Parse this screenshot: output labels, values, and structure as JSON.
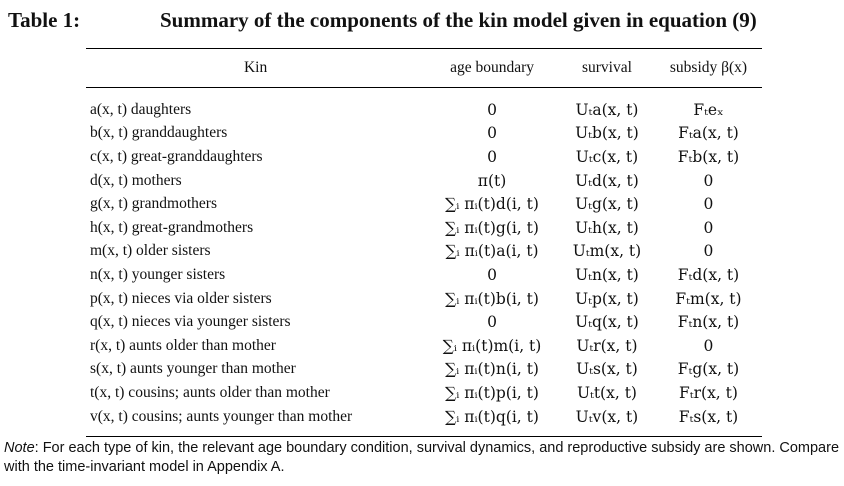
{
  "caption": {
    "label": "Table 1:",
    "title": "Summary of the components of the kin model given in equation (9)"
  },
  "headers": {
    "kin": "Kin",
    "age_boundary": "age boundary",
    "survival": "survival",
    "subsidy": "subsidy β(x)"
  },
  "rows": [
    {
      "kin": "a(x, t) daughters",
      "age_boundary": "0",
      "survival": "Uₜa(x, t)",
      "subsidy": "Fₜeₓ"
    },
    {
      "kin": "b(x, t) granddaughters",
      "age_boundary": "0",
      "survival": "Uₜb(x, t)",
      "subsidy": "Fₜa(x, t)"
    },
    {
      "kin": "c(x, t) great-granddaughters",
      "age_boundary": "0",
      "survival": "Uₜc(x, t)",
      "subsidy": "Fₜb(x, t)"
    },
    {
      "kin": "d(x, t) mothers",
      "age_boundary": "π(t)",
      "survival": "Uₜd(x, t)",
      "subsidy": "0"
    },
    {
      "kin": "g(x, t) grandmothers",
      "age_boundary": "∑ᵢ πᵢ(t)d(i, t)",
      "survival": "Uₜg(x, t)",
      "subsidy": "0"
    },
    {
      "kin": "h(x, t) great-grandmothers",
      "age_boundary": "∑ᵢ πᵢ(t)g(i, t)",
      "survival": "Uₜh(x, t)",
      "subsidy": "0"
    },
    {
      "kin": "m(x, t) older sisters",
      "age_boundary": "∑ᵢ πᵢ(t)a(i, t)",
      "survival": "Uₜm(x, t)",
      "subsidy": "0"
    },
    {
      "kin": "n(x, t) younger sisters",
      "age_boundary": "0",
      "survival": "Uₜn(x, t)",
      "subsidy": "Fₜd(x, t)"
    },
    {
      "kin": "p(x, t) nieces via older sisters",
      "age_boundary": "∑ᵢ πᵢ(t)b(i, t)",
      "survival": "Uₜp(x, t)",
      "subsidy": "Fₜm(x, t)"
    },
    {
      "kin": "q(x, t) nieces via younger sisters",
      "age_boundary": "0",
      "survival": "Uₜq(x, t)",
      "subsidy": "Fₜn(x, t)"
    },
    {
      "kin": "r(x, t) aunts older than mother",
      "age_boundary": "∑ᵢ πᵢ(t)m(i, t)",
      "survival": "Uₜr(x, t)",
      "subsidy": "0"
    },
    {
      "kin": "s(x, t) aunts younger than mother",
      "age_boundary": "∑ᵢ πᵢ(t)n(i, t)",
      "survival": "Uₜs(x, t)",
      "subsidy": "Fₜg(x, t)"
    },
    {
      "kin": "t(x, t) cousins; aunts older than mother",
      "age_boundary": "∑ᵢ πᵢ(t)p(i, t)",
      "survival": "Uₜt(x, t)",
      "subsidy": "Fₜr(x, t)"
    },
    {
      "kin": "v(x, t) cousins; aunts younger than mother",
      "age_boundary": "∑ᵢ πᵢ(t)q(i, t)",
      "survival": "Uₜv(x, t)",
      "subsidy": "Fₜs(x, t)"
    }
  ],
  "note": {
    "label": "Note",
    "text": ": For each type of kin, the relevant age boundary condition, survival dynamics, and reproductive subsidy are shown. Compare with the time-invariant model in Appendix A."
  }
}
